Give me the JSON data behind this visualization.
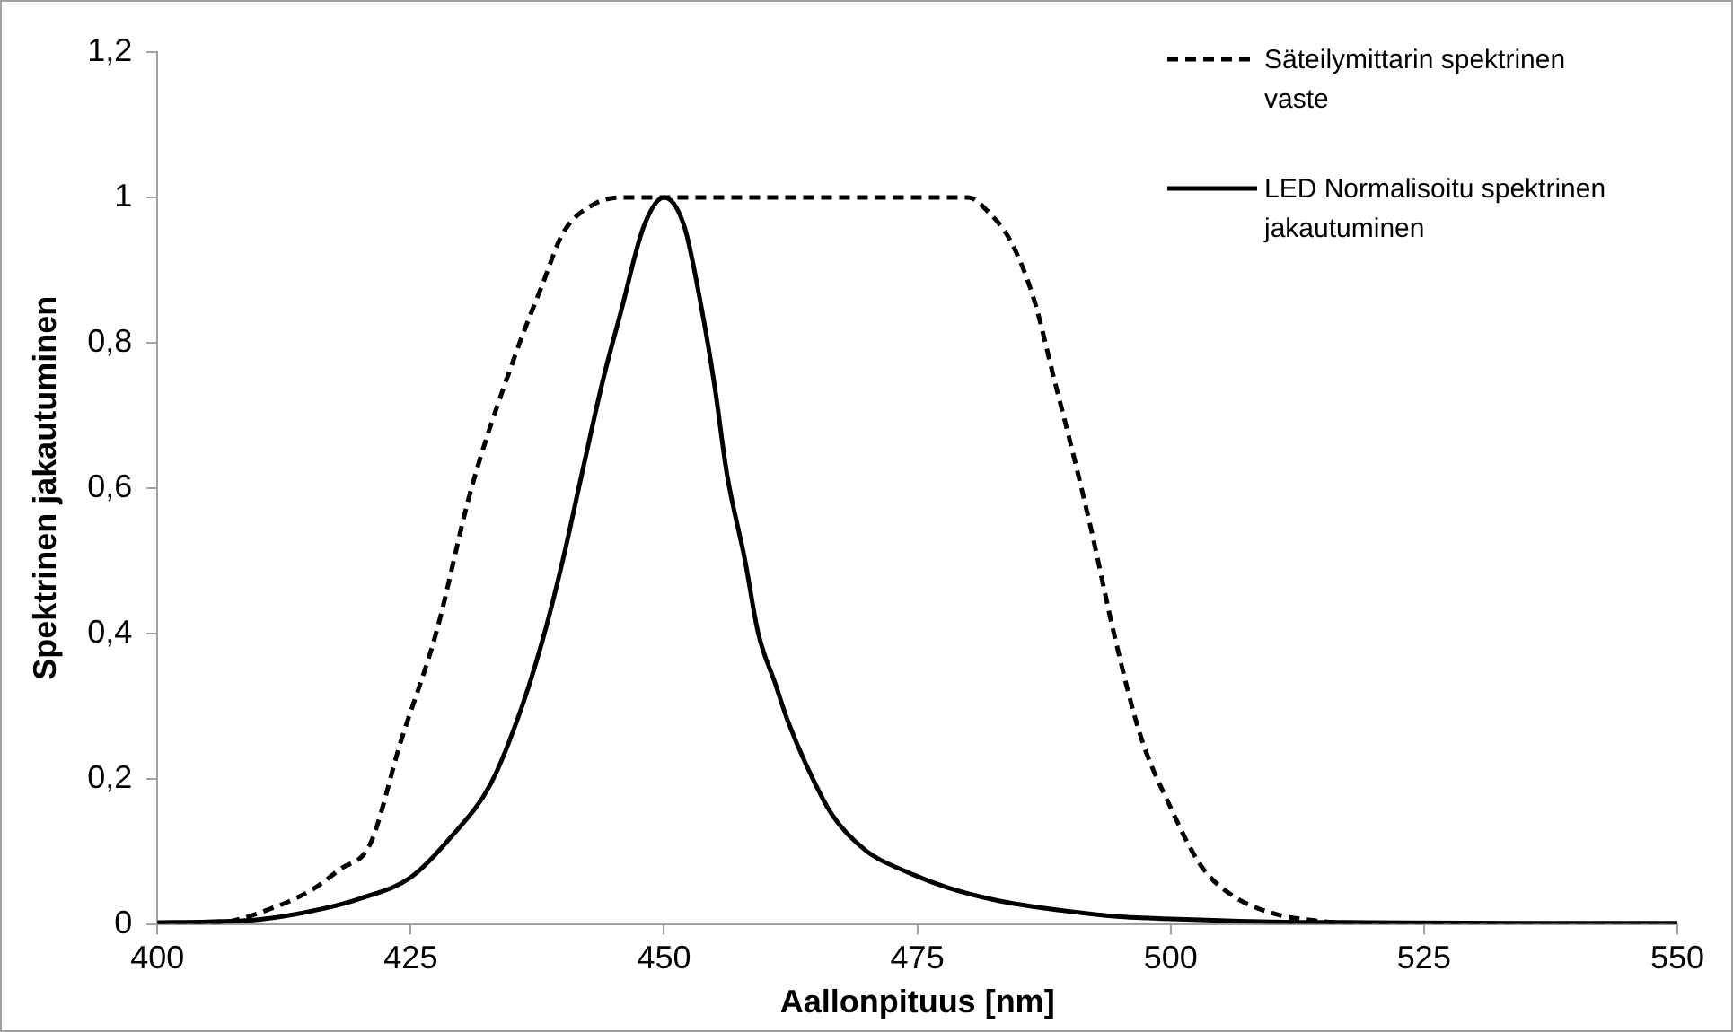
{
  "chart_data": {
    "type": "line",
    "xlabel": "Aallonpituus [nm]",
    "ylabel": "Spektrinen jakautuminen",
    "xlim": [
      400,
      550
    ],
    "xticks": [
      400,
      425,
      450,
      475,
      500,
      525,
      550
    ],
    "ylim": [
      0,
      1.2
    ],
    "yticks": [
      0,
      {
        "value": 0.2,
        "label": "0,2"
      },
      {
        "value": 0.4,
        "label": "0,4"
      },
      {
        "value": 0.6,
        "label": "0,6"
      },
      {
        "value": 0.8,
        "label": "0,8"
      },
      1,
      {
        "value": 1.2,
        "label": "1,2"
      }
    ],
    "grid": false,
    "legend": "top right",
    "marker": "none",
    "series": [
      {
        "name": "Säteilymittarin spektrinen vaste",
        "color": "#000000",
        "line_style": "dashed",
        "x": [
          400,
          405,
          407,
          410,
          415,
          418,
          421,
          424,
          427.5,
          431,
          435.5,
          438,
          440,
          443,
          446,
          450,
          460,
          470,
          480,
          482,
          484.2,
          486.5,
          488.5,
          490.5,
          492.2,
          494.4,
          497,
          500,
          503,
          506,
          510,
          514,
          518,
          525,
          550
        ],
        "values": [
          0,
          0,
          0.003,
          0.015,
          0.045,
          0.075,
          0.11,
          0.25,
          0.4,
          0.6,
          0.79,
          0.88,
          0.95,
          0.99,
          1,
          1,
          1,
          1,
          1,
          0.98,
          0.94,
          0.86,
          0.75,
          0.64,
          0.54,
          0.4,
          0.26,
          0.16,
          0.08,
          0.04,
          0.015,
          0.005,
          0.001,
          0,
          0
        ]
      },
      {
        "name": "LED Normalisoitu spektrinen jakautuminen",
        "color": "#000000",
        "line_style": "solid",
        "x": [
          400,
          405,
          410,
          416,
          420,
          425,
          429,
          432.9,
          436,
          438.2,
          440,
          441.9,
          444,
          445.7,
          448,
          450,
          452,
          453.8,
          455,
          456.2,
          458,
          459.3,
          461,
          462.2,
          464,
          466.6,
          470,
          473.9,
          478,
          483,
          488.5,
          495,
          500,
          510,
          520,
          535,
          550
        ],
        "values": [
          0.002,
          0.003,
          0.006,
          0.02,
          0.035,
          0.064,
          0.12,
          0.193,
          0.3,
          0.4,
          0.5,
          0.62,
          0.75,
          0.84,
          0.96,
          1,
          0.96,
          0.84,
          0.74,
          0.62,
          0.5,
          0.4,
          0.33,
          0.28,
          0.22,
          0.15,
          0.1,
          0.072,
          0.05,
          0.032,
          0.02,
          0.01,
          0.007,
          0.003,
          0.002,
          0.001,
          0.001
        ]
      }
    ]
  }
}
